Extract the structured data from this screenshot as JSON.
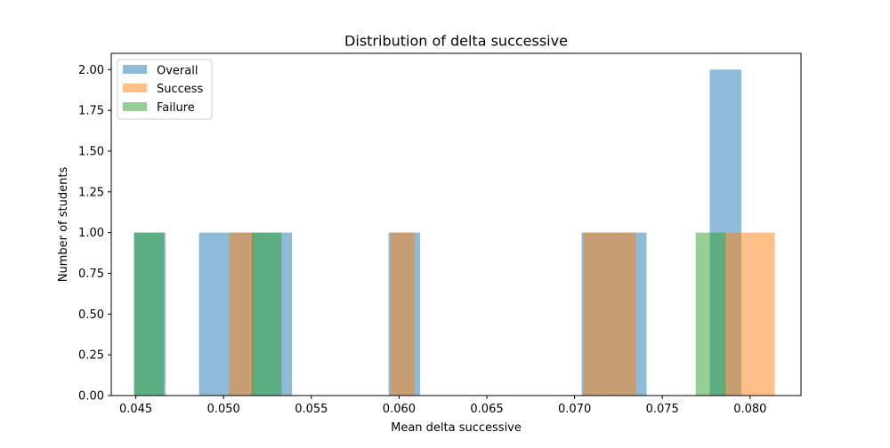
{
  "chart_data": {
    "type": "bar",
    "title": "Distribution of delta successive",
    "xlabel": "Mean delta successive",
    "ylabel": "Number of students",
    "xlim": [
      0.0436,
      0.0829
    ],
    "ylim": [
      0,
      2.1
    ],
    "xticks": [
      0.045,
      0.05,
      0.055,
      0.06,
      0.065,
      0.07,
      0.075,
      0.08
    ],
    "xtick_labels": [
      "0.045",
      "0.050",
      "0.055",
      "0.060",
      "0.065",
      "0.070",
      "0.075",
      "0.080"
    ],
    "yticks": [
      0,
      0.25,
      0.5,
      0.75,
      1.0,
      1.25,
      1.5,
      1.75,
      2.0
    ],
    "ytick_labels": [
      "0.00",
      "0.25",
      "0.50",
      "0.75",
      "1.00",
      "1.25",
      "1.50",
      "1.75",
      "2.00"
    ],
    "grid": false,
    "legend_position": "top-left",
    "series": [
      {
        "name": "Overall",
        "color": "#1f77b4",
        "alpha": 0.5,
        "bins": [
          {
            "x0": 0.0449,
            "x1": 0.0467,
            "count": 1
          },
          {
            "x0": 0.0486,
            "x1": 0.0503,
            "count": 1
          },
          {
            "x0": 0.0503,
            "x1": 0.0521,
            "count": 1
          },
          {
            "x0": 0.0521,
            "x1": 0.0539,
            "count": 1
          },
          {
            "x0": 0.0594,
            "x1": 0.0612,
            "count": 1
          },
          {
            "x0": 0.0704,
            "x1": 0.0722,
            "count": 1
          },
          {
            "x0": 0.0722,
            "x1": 0.0741,
            "count": 1
          },
          {
            "x0": 0.0777,
            "x1": 0.0795,
            "count": 2
          }
        ]
      },
      {
        "name": "Success",
        "color": "#ff7f0e",
        "alpha": 0.5,
        "bins": [
          {
            "x0": 0.0503,
            "x1": 0.0517,
            "count": 1
          },
          {
            "x0": 0.0595,
            "x1": 0.0609,
            "count": 1
          },
          {
            "x0": 0.0705,
            "x1": 0.072,
            "count": 1
          },
          {
            "x0": 0.072,
            "x1": 0.0735,
            "count": 1
          },
          {
            "x0": 0.0785,
            "x1": 0.0799,
            "count": 1
          },
          {
            "x0": 0.0799,
            "x1": 0.0814,
            "count": 1
          }
        ]
      },
      {
        "name": "Failure",
        "color": "#2ca02c",
        "alpha": 0.5,
        "bins": [
          {
            "x0": 0.0449,
            "x1": 0.0466,
            "count": 1
          },
          {
            "x0": 0.0516,
            "x1": 0.0533,
            "count": 1
          },
          {
            "x0": 0.0769,
            "x1": 0.0786,
            "count": 1
          }
        ]
      }
    ]
  }
}
